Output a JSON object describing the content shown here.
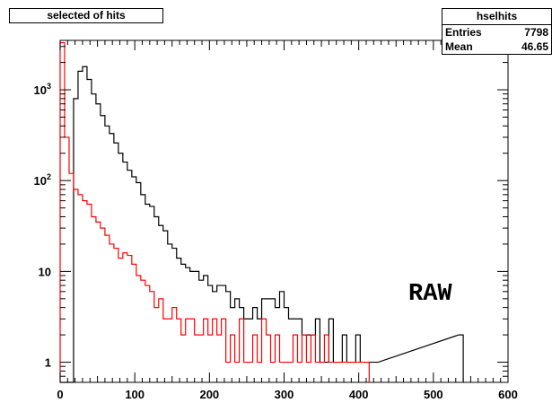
{
  "title": "selected of hits",
  "stats": {
    "name": "hselhits",
    "rows": [
      {
        "label": "Entries",
        "value": "7798"
      },
      {
        "label": "Mean",
        "value": "46.65"
      }
    ]
  },
  "annotation": "RAW",
  "colors": {
    "black_series": "#000000",
    "red_series": "#ff0000"
  },
  "chart_data": {
    "type": "line",
    "title": "selected of hits",
    "xlabel": "",
    "ylabel": "",
    "xlim": [
      0,
      600
    ],
    "ylim": [
      0.6,
      3500
    ],
    "yscale": "log",
    "bin_width": 6,
    "grid": false,
    "x_ticks": [
      0,
      100,
      200,
      300,
      400,
      500,
      600
    ],
    "y_ticks": [
      {
        "value": 1,
        "base": "1",
        "exp": ""
      },
      {
        "value": 10,
        "base": "10",
        "exp": ""
      },
      {
        "value": 100,
        "base": "10",
        "exp": "2"
      },
      {
        "value": 1000,
        "base": "10",
        "exp": "3"
      }
    ],
    "series": [
      {
        "color": "#000000",
        "x": [
          0,
          6,
          12,
          18,
          24,
          30,
          36,
          42,
          48,
          54,
          60,
          66,
          72,
          78,
          84,
          90,
          96,
          102,
          108,
          114,
          120,
          126,
          132,
          138,
          144,
          150,
          156,
          162,
          168,
          174,
          180,
          186,
          192,
          198,
          204,
          210,
          216,
          222,
          228,
          234,
          240,
          246,
          252,
          258,
          264,
          270,
          276,
          282,
          288,
          294,
          300,
          306,
          312,
          318,
          324,
          330,
          336,
          342,
          348,
          354,
          360,
          366,
          372,
          378,
          384,
          390,
          396,
          402,
          408,
          414,
          420,
          534
        ],
        "y": [
          0,
          0,
          0,
          800,
          1600,
          1800,
          1300,
          900,
          700,
          520,
          400,
          330,
          260,
          200,
          160,
          130,
          110,
          95,
          70,
          55,
          52,
          40,
          32,
          28,
          20,
          18,
          14,
          12,
          11,
          10,
          10,
          8,
          9,
          7,
          6,
          7,
          7,
          6,
          4,
          5,
          4,
          3,
          3,
          4,
          3,
          5,
          5,
          5,
          4,
          6,
          4,
          3,
          3,
          3,
          2,
          2,
          2,
          3,
          1,
          1,
          3,
          1,
          1,
          2,
          1,
          1,
          2,
          1,
          1,
          1,
          1,
          2
        ]
      },
      {
        "color": "#ff0000",
        "x": [
          0,
          6,
          12,
          18,
          24,
          30,
          36,
          42,
          48,
          54,
          60,
          66,
          72,
          78,
          84,
          90,
          96,
          102,
          108,
          114,
          120,
          126,
          132,
          138,
          144,
          150,
          156,
          162,
          168,
          174,
          180,
          186,
          192,
          198,
          204,
          210,
          216,
          222,
          228,
          234,
          240,
          246,
          252,
          258,
          264,
          270,
          276,
          282,
          288,
          294,
          300,
          306,
          312,
          318,
          324,
          330,
          336,
          342,
          348,
          354,
          360,
          366,
          372,
          378,
          384,
          390,
          396,
          402,
          408
        ],
        "y": [
          3300,
          300,
          120,
          80,
          70,
          60,
          55,
          40,
          35,
          30,
          25,
          20,
          18,
          14,
          16,
          15,
          12,
          9,
          8,
          7,
          6,
          4,
          5,
          3,
          3,
          4,
          3,
          2,
          3,
          3,
          2,
          2,
          3,
          2,
          3,
          2,
          3,
          1,
          2,
          1,
          3,
          1,
          1,
          2,
          1,
          3,
          2,
          1,
          2,
          1,
          1,
          1,
          2,
          1,
          2,
          1,
          2,
          1,
          1,
          2,
          1,
          1,
          1,
          1,
          1,
          1,
          1,
          1,
          1
        ]
      }
    ]
  }
}
